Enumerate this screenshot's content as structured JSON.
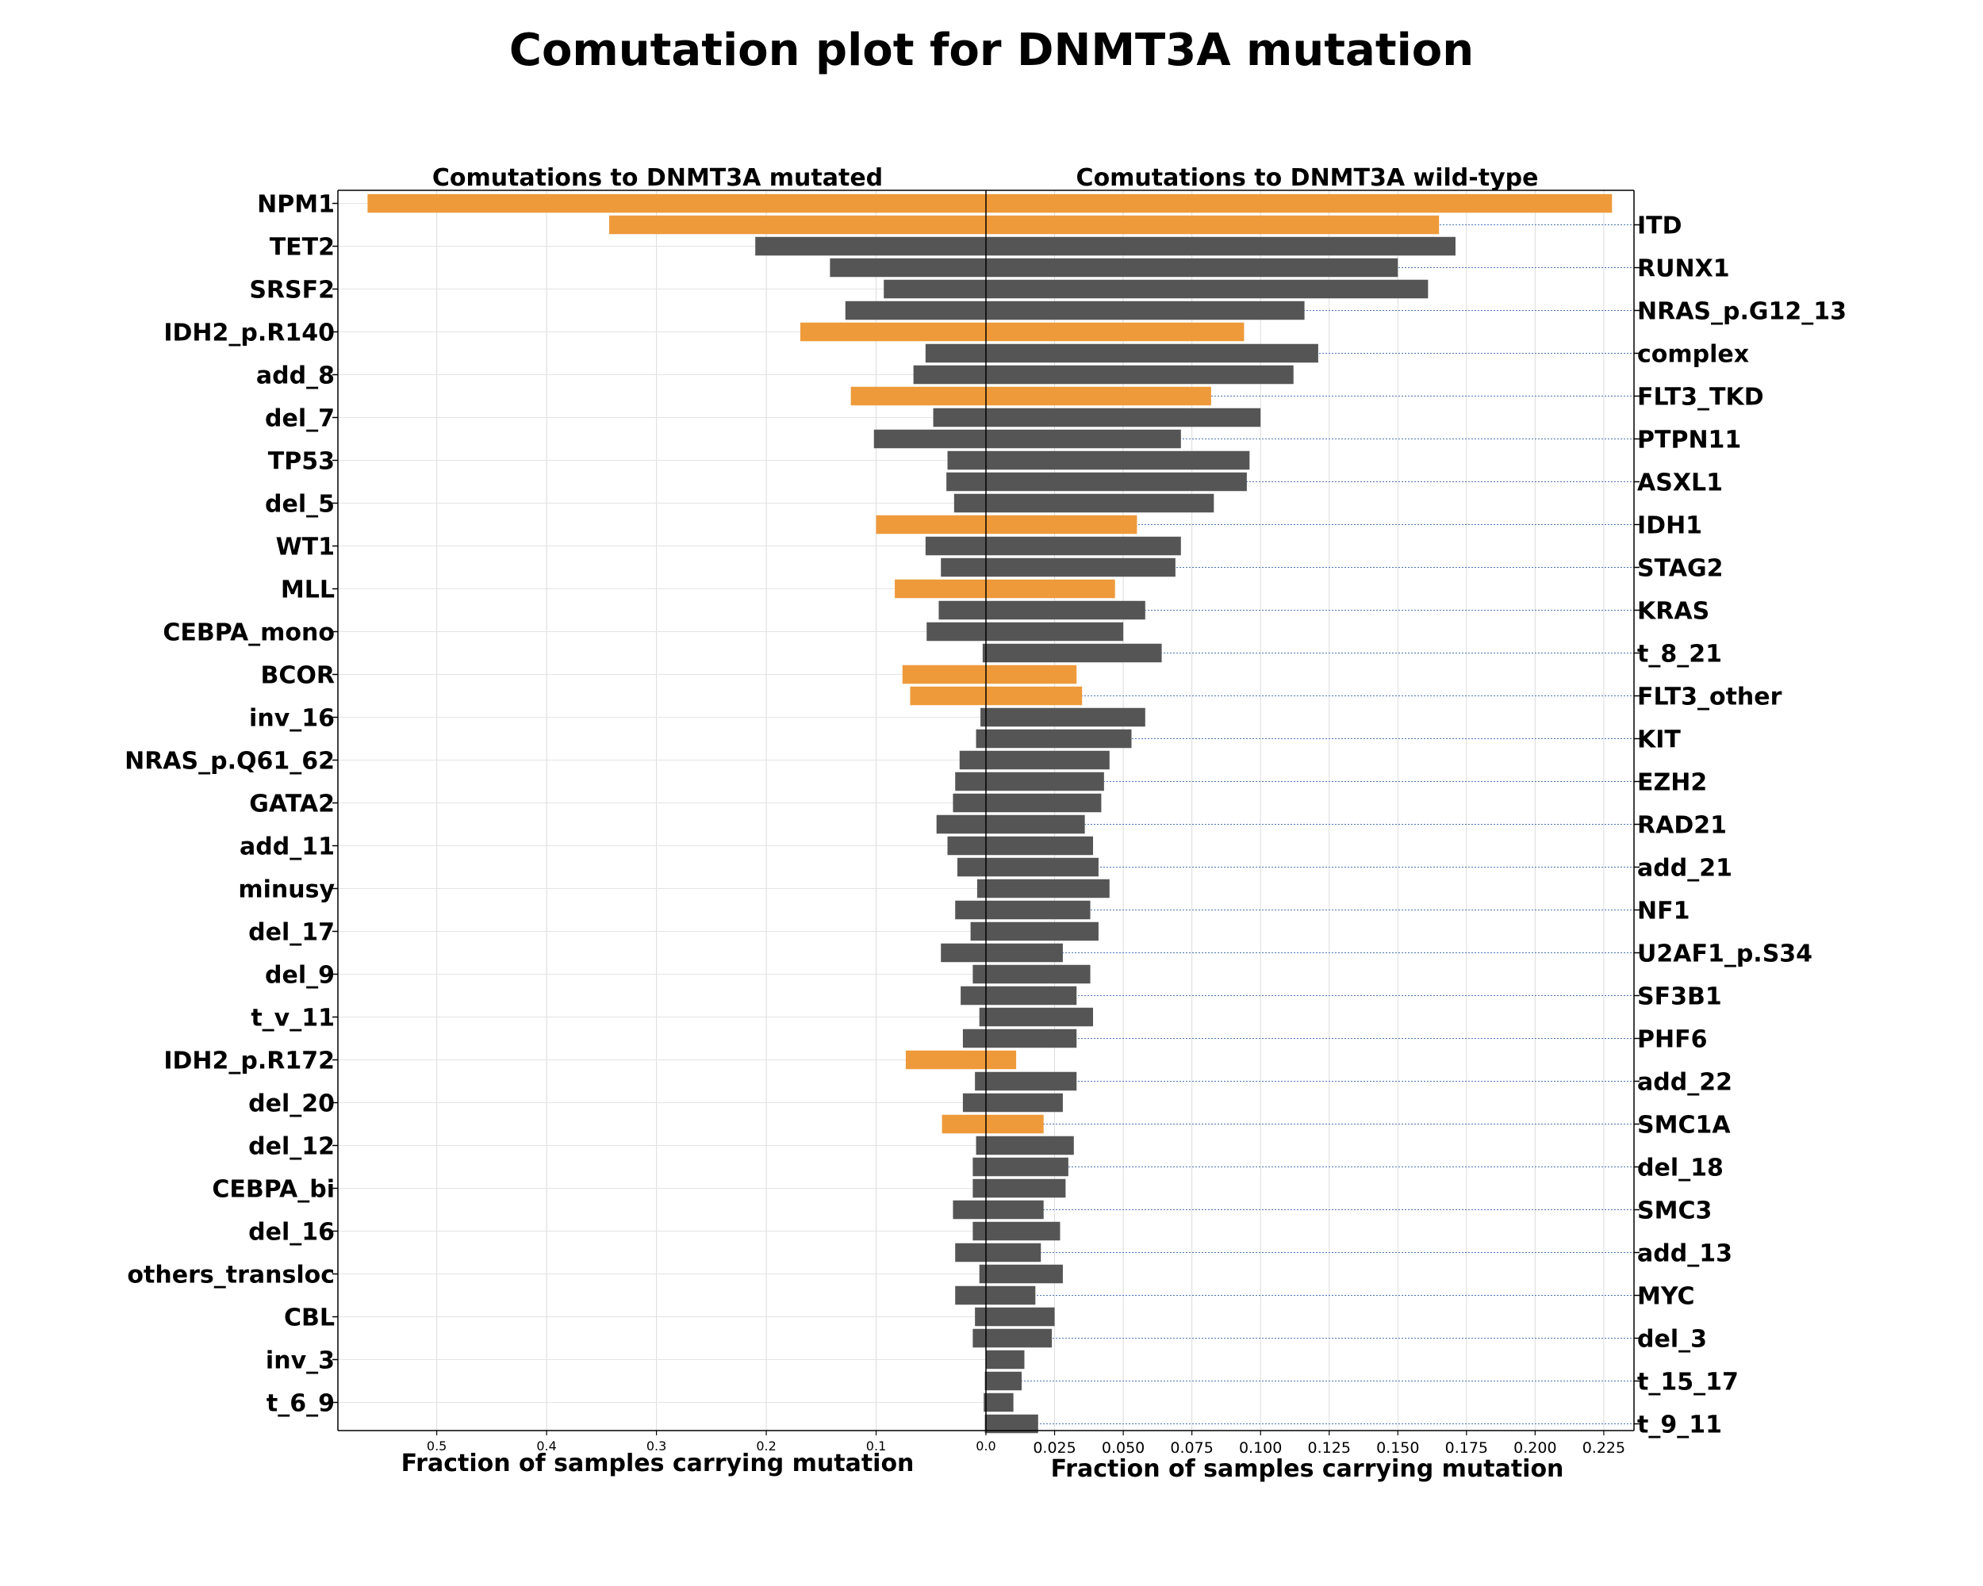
{
  "chart_data": {
    "type": "bar",
    "title": "Comutation plot for DNMT3A mutation",
    "left_panel": {
      "subtitle": "Comutations to DNMT3A mutated",
      "xlabel": "Fraction of samples carrying mutation",
      "xlim": [
        0,
        0.59
      ],
      "xticks": [
        0.5,
        0.4,
        0.3,
        0.2,
        0.1,
        0.0
      ],
      "xtick_labels": [
        "0.5",
        "0.4",
        "0.3",
        "0.2",
        "0.1",
        "0.0"
      ]
    },
    "right_panel": {
      "subtitle": "Comutations to DNMT3A wild-type",
      "xlabel": "Fraction of samples carrying mutation",
      "xlim": [
        0,
        0.236
      ],
      "xticks": [
        0.0,
        0.025,
        0.05,
        0.075,
        0.1,
        0.125,
        0.15,
        0.175,
        0.2,
        0.225
      ],
      "xtick_labels": [
        "0.0",
        "0.025",
        "0.050",
        "0.075",
        "0.100",
        "0.125",
        "0.150",
        "0.175",
        "0.200",
        "0.225"
      ]
    },
    "grid": true,
    "colors": {
      "highlight": "#ee9a3a",
      "default": "#555555",
      "gridline": "#4a72b8"
    },
    "categories": [
      "NPM1",
      "ITD",
      "TET2",
      "RUNX1",
      "SRSF2",
      "NRAS_p.G12_13",
      "IDH2_p.R140",
      "complex",
      "add_8",
      "FLT3_TKD",
      "del_7",
      "PTPN11",
      "TP53",
      "ASXL1",
      "del_5",
      "IDH1",
      "WT1",
      "STAG2",
      "MLL",
      "KRAS",
      "CEBPA_mono",
      "t_8_21",
      "BCOR",
      "FLT3_other",
      "inv_16",
      "KIT",
      "NRAS_p.Q61_62",
      "EZH2",
      "GATA2",
      "RAD21",
      "add_11",
      "add_21",
      "minusy",
      "NF1",
      "del_17",
      "U2AF1_p.S34",
      "del_9",
      "SF3B1",
      "t_v_11",
      "PHF6",
      "IDH2_p.R172",
      "add_22",
      "del_20",
      "SMC1A",
      "del_12",
      "del_18",
      "CEBPA_bi",
      "SMC3",
      "del_16",
      "add_13",
      "others_transloc",
      "MYC",
      "CBL",
      "del_3",
      "inv_3",
      "t_15_17",
      "t_6_9",
      "t_9_11"
    ],
    "left_labels": [
      "NPM1",
      "TET2",
      "SRSF2",
      "IDH2_p.R140",
      "add_8",
      "del_7",
      "TP53",
      "del_5",
      "WT1",
      "MLL",
      "CEBPA_mono",
      "BCOR",
      "inv_16",
      "NRAS_p.Q61_62",
      "GATA2",
      "add_11",
      "minusy",
      "del_17",
      "del_9",
      "t_v_11",
      "IDH2_p.R172",
      "del_20",
      "del_12",
      "CEBPA_bi",
      "del_16",
      "others_transloc",
      "CBL",
      "inv_3",
      "t_6_9"
    ],
    "right_labels": [
      "ITD",
      "RUNX1",
      "NRAS_p.G12_13",
      "complex",
      "FLT3_TKD",
      "PTPN11",
      "ASXL1",
      "IDH1",
      "STAG2",
      "KRAS",
      "t_8_21",
      "FLT3_other",
      "KIT",
      "EZH2",
      "RAD21",
      "add_21",
      "NF1",
      "U2AF1_p.S34",
      "SF3B1",
      "PHF6",
      "add_22",
      "SMC1A",
      "del_18",
      "SMC3",
      "add_13",
      "MYC",
      "del_3",
      "t_15_17",
      "t_9_11"
    ],
    "series": [
      {
        "name": "DNMT3A mutated",
        "values": [
          0.563,
          0.343,
          0.21,
          0.142,
          0.093,
          0.128,
          0.169,
          0.055,
          0.066,
          0.123,
          0.048,
          0.102,
          0.035,
          0.036,
          0.029,
          0.1,
          0.055,
          0.041,
          0.083,
          0.043,
          0.054,
          0.003,
          0.076,
          0.069,
          0.005,
          0.009,
          0.024,
          0.028,
          0.03,
          0.045,
          0.035,
          0.026,
          0.008,
          0.028,
          0.014,
          0.041,
          0.012,
          0.023,
          0.006,
          0.021,
          0.073,
          0.01,
          0.021,
          0.04,
          0.009,
          0.012,
          0.012,
          0.03,
          0.012,
          0.028,
          0.006,
          0.028,
          0.01,
          0.012,
          0.0,
          0.001,
          0.002,
          0.001
        ]
      },
      {
        "name": "DNMT3A wild-type",
        "values": [
          0.228,
          0.165,
          0.171,
          0.15,
          0.161,
          0.116,
          0.094,
          0.121,
          0.112,
          0.082,
          0.1,
          0.071,
          0.096,
          0.095,
          0.083,
          0.055,
          0.071,
          0.069,
          0.047,
          0.058,
          0.05,
          0.064,
          0.033,
          0.035,
          0.058,
          0.053,
          0.045,
          0.043,
          0.042,
          0.036,
          0.039,
          0.041,
          0.045,
          0.038,
          0.041,
          0.028,
          0.038,
          0.033,
          0.039,
          0.033,
          0.011,
          0.033,
          0.028,
          0.021,
          0.032,
          0.03,
          0.029,
          0.021,
          0.027,
          0.02,
          0.028,
          0.018,
          0.025,
          0.024,
          0.014,
          0.013,
          0.01,
          0.019
        ]
      }
    ],
    "highlighted_categories": [
      "NPM1",
      "ITD",
      "IDH2_p.R140",
      "FLT3_TKD",
      "IDH1",
      "MLL",
      "BCOR",
      "FLT3_other",
      "IDH2_p.R172",
      "SMC1A"
    ]
  }
}
